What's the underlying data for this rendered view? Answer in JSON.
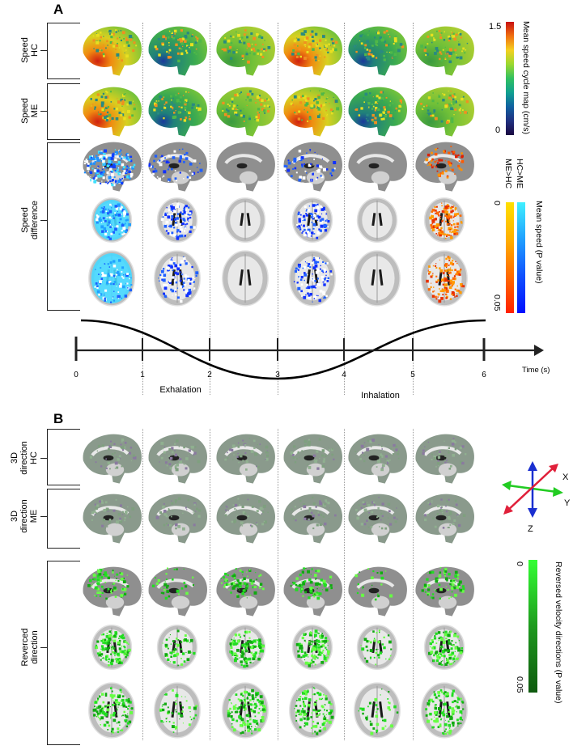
{
  "panel_a": {
    "letter": "A",
    "rows": {
      "speed_hc": "Speed\nHC",
      "speed_me": "Speed\nME",
      "speed_diff": "Speed\ndifference"
    },
    "colorbar_speed": {
      "label": "Mean speed cycle map (cm/s)",
      "max": "1.5",
      "min": "0"
    },
    "colorbar_pvalue": {
      "label": "Mean speed (P value)",
      "hc_gt_me": "HC>ME",
      "me_gt_hc": "ME>HC",
      "top": "0",
      "bottom": "0.05"
    }
  },
  "timeline": {
    "ticks": [
      "0",
      "1",
      "2",
      "3",
      "4",
      "5",
      "6"
    ],
    "axis_label": "Time (s)",
    "exhalation": "Exhalation",
    "inhalation": "Inhalation"
  },
  "panel_b": {
    "letter": "B",
    "rows": {
      "dir_hc": "3D\ndirection\nHC",
      "dir_me": "3D\ndirection\nME",
      "reversed": "Reverced\ndirection"
    },
    "axes": {
      "x": "X",
      "y": "Y",
      "z": "Z"
    },
    "colorbar_green": {
      "label": "Reversed velocity directions (P value)",
      "top": "0",
      "bottom": "0.05"
    }
  },
  "colors": {
    "axis_x": "#e0203a",
    "axis_y": "#22cc22",
    "axis_z": "#1a2fd0",
    "accent_green": "#22dd22"
  }
}
